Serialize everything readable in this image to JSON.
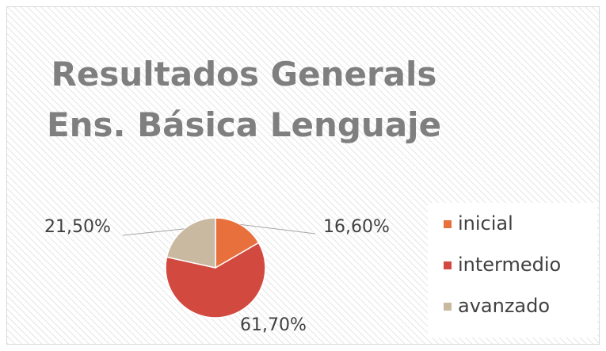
{
  "chart_data": {
    "type": "pie",
    "title": "Resultados Generals Ens. Básica Lenguaje",
    "categories": [
      "inicial",
      "intermedio",
      "avanzado"
    ],
    "values": [
      16.6,
      61.7,
      21.5
    ],
    "value_labels": [
      "16,60%",
      "61,70%",
      "21,50%"
    ],
    "colors": [
      "#e8703d",
      "#d2493f",
      "#c9b9a1"
    ],
    "legend": "right"
  }
}
